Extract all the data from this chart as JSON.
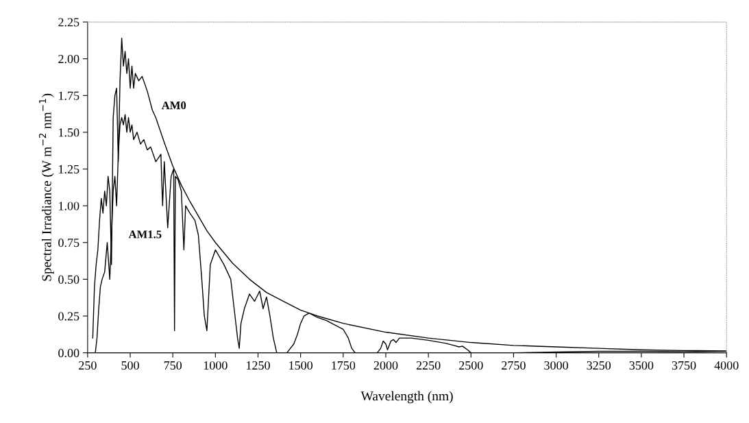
{
  "chart_data": {
    "type": "line",
    "xlabel": "Wavelength (nm)",
    "ylabel": "Spectral Irradiance (W m$^{−2}$ nm$^{−1}$)",
    "xlim": [
      250,
      4000
    ],
    "ylim": [
      0,
      2.25
    ],
    "xticks": [
      250,
      500,
      750,
      1000,
      1250,
      1500,
      1750,
      2000,
      2250,
      2500,
      2750,
      3000,
      3250,
      3500,
      3750,
      4000
    ],
    "yticks": [
      {
        "value": 0,
        "label": "0.00"
      },
      {
        "value": 0.25,
        "label": "0.25"
      },
      {
        "value": 0.5,
        "label": "0.50"
      },
      {
        "value": 0.75,
        "label": "0.75"
      },
      {
        "value": 1.0,
        "label": "1.00"
      },
      {
        "value": 1.25,
        "label": "1.25"
      },
      {
        "value": 1.5,
        "label": "1.50"
      },
      {
        "value": 1.75,
        "label": "1.75"
      },
      {
        "value": 2.0,
        "label": "2.00"
      },
      {
        "value": 2.25,
        "label": "2.25"
      }
    ],
    "grid": false,
    "legend": false,
    "marker": "none",
    "line_style": "solid",
    "series": [
      {
        "name": "AM0",
        "color": "#000000",
        "x": [
          280,
          290,
          300,
          310,
          320,
          330,
          340,
          350,
          360,
          370,
          380,
          390,
          400,
          410,
          420,
          430,
          440,
          450,
          460,
          470,
          480,
          490,
          500,
          510,
          520,
          530,
          550,
          570,
          600,
          630,
          650,
          700,
          750,
          800,
          850,
          900,
          950,
          1000,
          1100,
          1200,
          1300,
          1400,
          1500,
          1600,
          1750,
          2000,
          2250,
          2500,
          2750,
          3000,
          3250,
          3500,
          3750,
          4000
        ],
        "values": [
          0.1,
          0.45,
          0.6,
          0.7,
          0.9,
          1.05,
          0.95,
          1.1,
          1.0,
          1.2,
          1.1,
          0.6,
          1.6,
          1.75,
          1.8,
          1.3,
          1.85,
          2.14,
          1.95,
          2.05,
          1.9,
          2.0,
          1.8,
          1.95,
          1.8,
          1.9,
          1.85,
          1.88,
          1.78,
          1.65,
          1.6,
          1.43,
          1.27,
          1.14,
          1.03,
          0.93,
          0.83,
          0.75,
          0.61,
          0.5,
          0.41,
          0.35,
          0.29,
          0.25,
          0.2,
          0.14,
          0.1,
          0.07,
          0.05,
          0.04,
          0.03,
          0.02,
          0.015,
          0.012
        ]
      },
      {
        "name": "AM1.5",
        "color": "#000000",
        "x": [
          295,
          305,
          315,
          325,
          335,
          350,
          365,
          380,
          395,
          400,
          410,
          420,
          430,
          440,
          450,
          460,
          470,
          480,
          490,
          500,
          510,
          520,
          540,
          560,
          580,
          600,
          620,
          650,
          680,
          690,
          700,
          720,
          740,
          755,
          760,
          765,
          780,
          800,
          815,
          825,
          850,
          880,
          900,
          920,
          935,
          950,
          970,
          1000,
          1050,
          1090,
          1110,
          1130,
          1140,
          1150,
          1170,
          1200,
          1230,
          1260,
          1280,
          1300,
          1320,
          1340,
          1360,
          1420,
          1440,
          1460,
          1480,
          1500,
          1520,
          1550,
          1600,
          1650,
          1700,
          1750,
          1780,
          1800,
          1820,
          1950,
          1970,
          1985,
          2000,
          2010,
          2030,
          2045,
          2060,
          2080,
          2150,
          2250,
          2350,
          2400,
          2430,
          2450,
          2480,
          2500,
          2750,
          3000,
          3250,
          3500,
          3750,
          4000
        ],
        "values": [
          0.0,
          0.1,
          0.3,
          0.45,
          0.5,
          0.55,
          0.75,
          0.5,
          0.95,
          1.1,
          1.2,
          1.0,
          1.35,
          1.55,
          1.6,
          1.55,
          1.62,
          1.5,
          1.6,
          1.5,
          1.55,
          1.45,
          1.5,
          1.42,
          1.45,
          1.38,
          1.4,
          1.3,
          1.35,
          1.0,
          1.3,
          0.85,
          1.2,
          1.25,
          0.15,
          1.2,
          1.18,
          1.1,
          0.7,
          1.0,
          0.95,
          0.9,
          0.8,
          0.5,
          0.25,
          0.15,
          0.6,
          0.7,
          0.6,
          0.5,
          0.3,
          0.1,
          0.03,
          0.2,
          0.3,
          0.4,
          0.35,
          0.42,
          0.3,
          0.38,
          0.25,
          0.1,
          0.0,
          0.0,
          0.03,
          0.06,
          0.12,
          0.2,
          0.25,
          0.27,
          0.24,
          0.22,
          0.19,
          0.16,
          0.1,
          0.03,
          0.0,
          0.0,
          0.03,
          0.08,
          0.06,
          0.02,
          0.08,
          0.09,
          0.07,
          0.1,
          0.1,
          0.085,
          0.065,
          0.05,
          0.04,
          0.045,
          0.02,
          0.0,
          0.0,
          0.005,
          0.01,
          0.01,
          0.008,
          0.01
        ]
      }
    ]
  }
}
